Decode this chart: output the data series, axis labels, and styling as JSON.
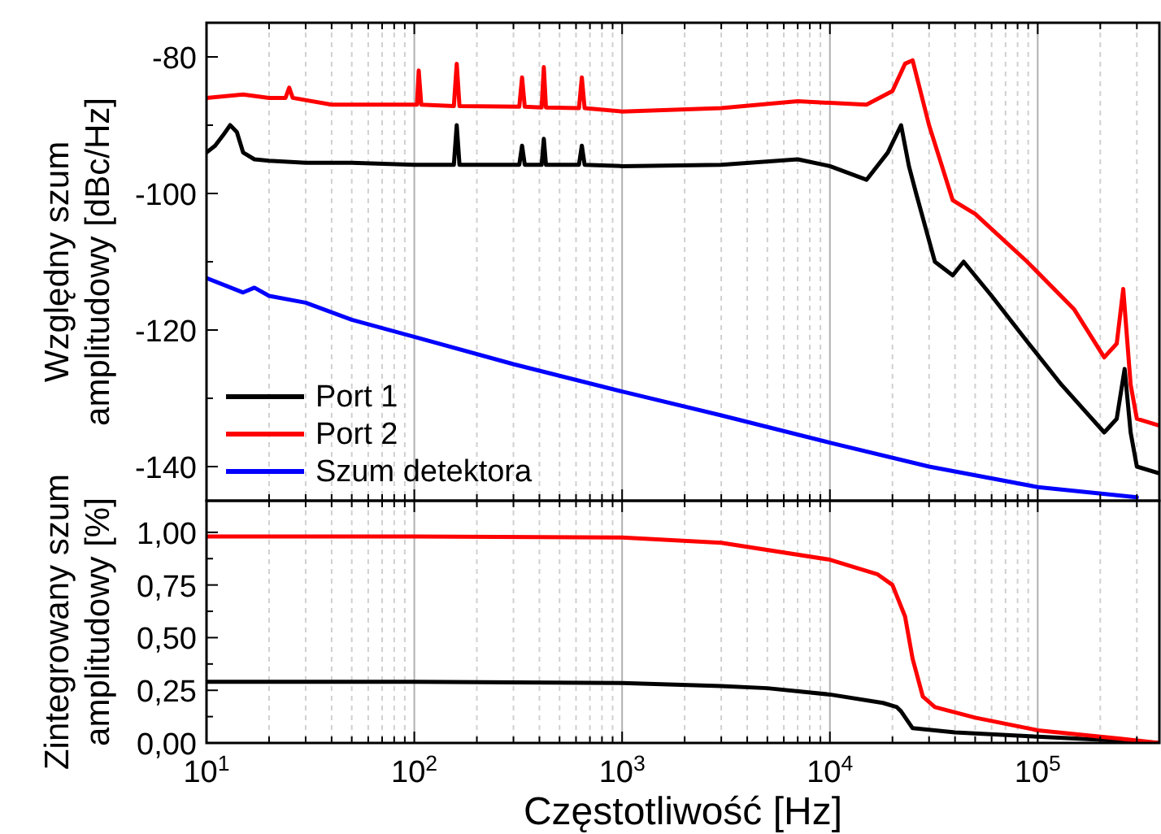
{
  "chart_data": [
    {
      "type": "line",
      "ylabel": "Względny szum\namplitudowy [dBc/Hz]",
      "log": "x",
      "grid": "x",
      "legend": "bottom left",
      "tick_labels": "y",
      "xlim": [
        10,
        385000
      ],
      "ylim": [
        -145,
        -75
      ],
      "xticks": [
        {
          "value": 10,
          "label": null
        },
        {
          "value": 20,
          "label": null
        },
        {
          "value": 30,
          "label": null
        },
        {
          "value": 40,
          "label": null
        },
        {
          "value": 50,
          "label": null
        },
        {
          "value": 60,
          "label": null
        },
        {
          "value": 70,
          "label": null
        },
        {
          "value": 80,
          "label": null
        },
        {
          "value": 90,
          "label": null
        },
        {
          "value": 100,
          "label": null
        },
        {
          "value": 200,
          "label": null
        },
        {
          "value": 300,
          "label": null
        },
        {
          "value": 400,
          "label": null
        },
        {
          "value": 500,
          "label": null
        },
        {
          "value": 600,
          "label": null
        },
        {
          "value": 700,
          "label": null
        },
        {
          "value": 800,
          "label": null
        },
        {
          "value": 900,
          "label": null
        },
        {
          "value": 1000,
          "label": null
        },
        {
          "value": 2000,
          "label": null
        },
        {
          "value": 3000,
          "label": null
        },
        {
          "value": 4000,
          "label": null
        },
        {
          "value": 5000,
          "label": null
        },
        {
          "value": 6000,
          "label": null
        },
        {
          "value": 7000,
          "label": null
        },
        {
          "value": 8000,
          "label": null
        },
        {
          "value": 9000,
          "label": null
        },
        {
          "value": 10000,
          "label": null
        },
        {
          "value": 20000,
          "label": null
        },
        {
          "value": 30000,
          "label": null
        },
        {
          "value": 40000,
          "label": null
        },
        {
          "value": 50000,
          "label": null
        },
        {
          "value": 60000,
          "label": null
        },
        {
          "value": 70000,
          "label": null
        },
        {
          "value": 80000,
          "label": null
        },
        {
          "value": 90000,
          "label": null
        },
        {
          "value": 100000,
          "label": null
        },
        {
          "value": 200000,
          "label": null
        },
        {
          "value": 300000,
          "label": null
        }
      ],
      "yticks": [
        -140,
        {
          "value": -130,
          "label": null
        },
        -120,
        {
          "value": -110,
          "label": null
        },
        -100,
        {
          "value": -90,
          "label": null
        },
        -80
      ],
      "series": [
        {
          "name": "Port 1",
          "color": "#000000",
          "x": [
            10,
            11,
            12,
            13,
            14,
            15,
            17,
            20,
            30,
            50,
            100,
            155,
            160,
            165,
            250,
            320,
            330,
            340,
            410,
            420,
            430,
            620,
            640,
            660,
            1000,
            3000,
            7000,
            10000,
            15000,
            19000,
            22000,
            24000,
            26000,
            32000,
            39000,
            44000,
            60000,
            89000,
            130000,
            209000,
            240000,
            262000,
            280000,
            300000,
            385000
          ],
          "values": [
            -94,
            -93,
            -91.5,
            -90,
            -91,
            -94,
            -95,
            -95.2,
            -95.5,
            -95.5,
            -95.8,
            -95.8,
            -90,
            -95.8,
            -95.8,
            -95.8,
            -93,
            -95.8,
            -95.8,
            -92,
            -95.8,
            -95.8,
            -93,
            -95.8,
            -96,
            -95.8,
            -95,
            -96,
            -98,
            -94,
            -90,
            -96,
            -100,
            -110,
            -112,
            -110,
            -115,
            -121.7,
            -128,
            -135,
            -133,
            -125.7,
            -135,
            -140,
            -141
          ]
        },
        {
          "name": "Port 2",
          "color": "#ff0000",
          "x": [
            10,
            15,
            20,
            24,
            25,
            26,
            40,
            100,
            103,
            105,
            108,
            155,
            160,
            165,
            320,
            330,
            340,
            410,
            420,
            430,
            620,
            640,
            660,
            1000,
            3000,
            7000,
            15000,
            20000,
            23000,
            25000,
            30000,
            39000,
            50000,
            89000,
            150000,
            209000,
            240000,
            258000,
            280000,
            300000,
            385000
          ],
          "values": [
            -86,
            -85.5,
            -86,
            -86,
            -84.5,
            -86,
            -87,
            -87,
            -87,
            -82,
            -87,
            -87.2,
            -81,
            -87.2,
            -87.3,
            -83,
            -87.3,
            -87.4,
            -81.5,
            -87.4,
            -87.5,
            -83,
            -87.5,
            -88,
            -87.5,
            -86.5,
            -87,
            -85,
            -81,
            -80.5,
            -90,
            -101,
            -103,
            -110,
            -117,
            -124,
            -122,
            -114,
            -128,
            -133,
            -134
          ]
        },
        {
          "name": "Szum detektora",
          "color": "#0000ff",
          "x": [
            10,
            15,
            17,
            20,
            30,
            50,
            100,
            300,
            1000,
            3000,
            10000,
            30000,
            100000,
            300000
          ],
          "values": [
            -112.4,
            -114.5,
            -113.8,
            -115,
            -116,
            -118.5,
            -121,
            -125,
            -129,
            -132.5,
            -136.5,
            -140,
            -143,
            -144.5
          ]
        }
      ]
    },
    {
      "type": "line",
      "ylabel": "Zintegrowany szum\namplitudowy [%]",
      "xlabel": "Częstotliwość [Hz]",
      "log": "x",
      "grid": "x",
      "xlim": [
        10,
        385000
      ],
      "ylim": [
        0,
        1.15
      ],
      "xticks": [
        {
          "value": 10,
          "label": "10$^{1}$"
        },
        {
          "value": 20,
          "label": null
        },
        {
          "value": 30,
          "label": null
        },
        {
          "value": 40,
          "label": null
        },
        {
          "value": 50,
          "label": null
        },
        {
          "value": 60,
          "label": null
        },
        {
          "value": 70,
          "label": null
        },
        {
          "value": 80,
          "label": null
        },
        {
          "value": 90,
          "label": null
        },
        {
          "value": 100,
          "label": "10$^{2}$"
        },
        {
          "value": 200,
          "label": null
        },
        {
          "value": 300,
          "label": null
        },
        {
          "value": 400,
          "label": null
        },
        {
          "value": 500,
          "label": null
        },
        {
          "value": 600,
          "label": null
        },
        {
          "value": 700,
          "label": null
        },
        {
          "value": 800,
          "label": null
        },
        {
          "value": 900,
          "label": null
        },
        {
          "value": 1000,
          "label": "10$^{3}$"
        },
        {
          "value": 2000,
          "label": null
        },
        {
          "value": 3000,
          "label": null
        },
        {
          "value": 4000,
          "label": null
        },
        {
          "value": 5000,
          "label": null
        },
        {
          "value": 6000,
          "label": null
        },
        {
          "value": 7000,
          "label": null
        },
        {
          "value": 8000,
          "label": null
        },
        {
          "value": 9000,
          "label": null
        },
        {
          "value": 10000,
          "label": "10$^{4}$"
        },
        {
          "value": 20000,
          "label": null
        },
        {
          "value": 30000,
          "label": null
        },
        {
          "value": 40000,
          "label": null
        },
        {
          "value": 50000,
          "label": null
        },
        {
          "value": 60000,
          "label": null
        },
        {
          "value": 70000,
          "label": null
        },
        {
          "value": 80000,
          "label": null
        },
        {
          "value": 90000,
          "label": null
        },
        {
          "value": 100000,
          "label": "10$^{5}$"
        },
        {
          "value": 200000,
          "label": null
        },
        {
          "value": 300000,
          "label": null
        }
      ],
      "yticks": [
        {
          "value": 0,
          "label": "0,00"
        },
        {
          "value": 0.125,
          "label": null
        },
        {
          "value": 0.25,
          "label": "0,25"
        },
        {
          "value": 0.375,
          "label": null
        },
        {
          "value": 0.5,
          "label": "0,50"
        },
        {
          "value": 0.625,
          "label": null
        },
        {
          "value": 0.75,
          "label": "0,75"
        },
        {
          "value": 0.875,
          "label": null
        },
        {
          "value": 1,
          "label": "1,00"
        }
      ],
      "series": [
        {
          "color": "#000000",
          "x": [
            10,
            100,
            1000,
            3000,
            5000,
            10000,
            18000,
            21000,
            22000,
            25000,
            40000,
            100000,
            200000,
            385000
          ],
          "values": [
            0.29,
            0.29,
            0.285,
            0.27,
            0.26,
            0.23,
            0.19,
            0.17,
            0.15,
            0.07,
            0.05,
            0.03,
            0.015,
            0.0
          ]
        },
        {
          "color": "#ff0000",
          "x": [
            10,
            100,
            1000,
            3000,
            10000,
            17000,
            20000,
            23000,
            25000,
            28000,
            32000,
            50000,
            100000,
            200000,
            250000,
            385000
          ],
          "values": [
            0.98,
            0.98,
            0.975,
            0.95,
            0.87,
            0.8,
            0.75,
            0.6,
            0.4,
            0.22,
            0.17,
            0.12,
            0.06,
            0.03,
            0.02,
            0.0
          ]
        }
      ]
    }
  ]
}
